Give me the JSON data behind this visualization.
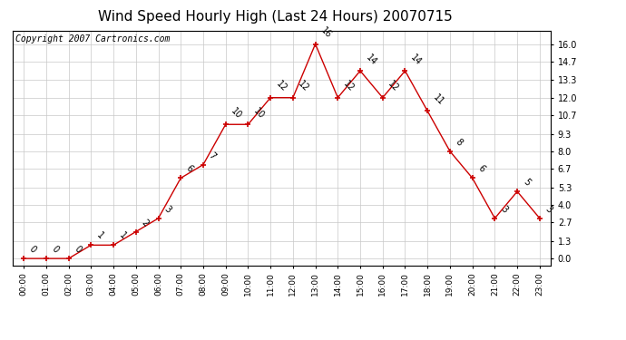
{
  "title": "Wind Speed Hourly High (Last 24 Hours) 20070715",
  "copyright": "Copyright 2007 Cartronics.com",
  "hours": [
    "00:00",
    "01:00",
    "02:00",
    "03:00",
    "04:00",
    "05:00",
    "06:00",
    "07:00",
    "08:00",
    "09:00",
    "10:00",
    "11:00",
    "12:00",
    "13:00",
    "14:00",
    "15:00",
    "16:00",
    "17:00",
    "18:00",
    "19:00",
    "20:00",
    "21:00",
    "22:00",
    "23:00"
  ],
  "values": [
    0,
    0,
    0,
    1,
    1,
    2,
    3,
    6,
    7,
    10,
    10,
    12,
    12,
    16,
    12,
    14,
    12,
    14,
    11,
    8,
    6,
    3,
    5,
    3
  ],
  "line_color": "#cc0000",
  "marker_color": "#cc0000",
  "bg_color": "#ffffff",
  "plot_bg_color": "#ffffff",
  "grid_color": "#c8c8c8",
  "yticks": [
    0.0,
    1.3,
    2.7,
    4.0,
    5.3,
    6.7,
    8.0,
    9.3,
    10.7,
    12.0,
    13.3,
    14.7,
    16.0
  ],
  "ylim": [
    -0.5,
    17.0
  ],
  "title_fontsize": 11,
  "annotation_fontsize": 7,
  "copyright_fontsize": 7,
  "tick_fontsize": 7,
  "xtick_fontsize": 6.5
}
